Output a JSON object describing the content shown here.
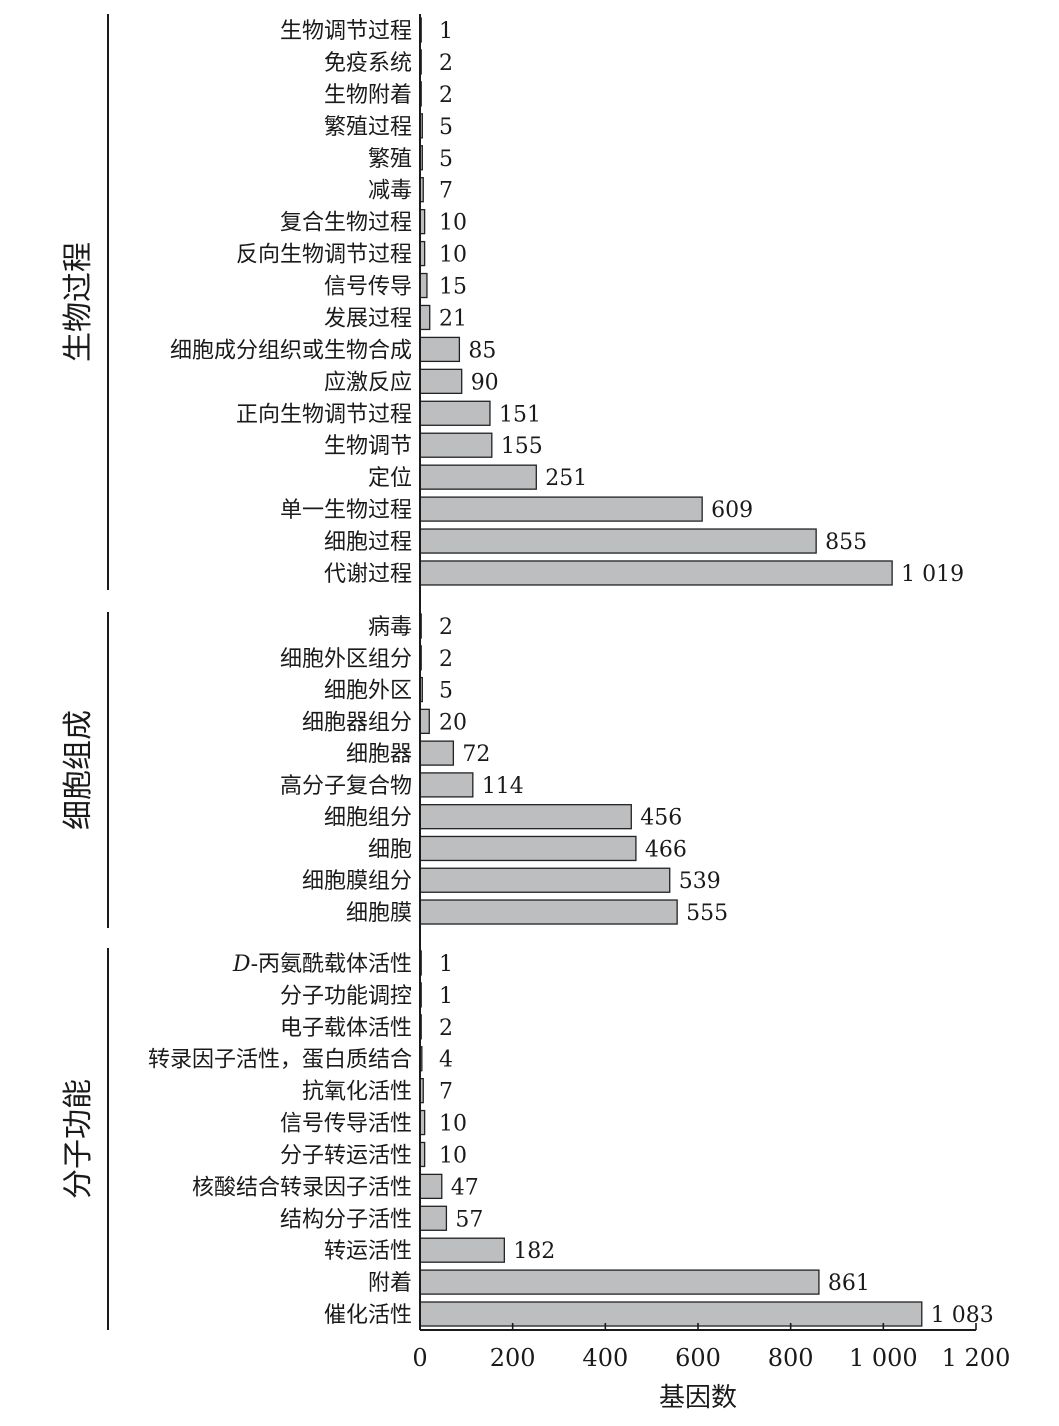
{
  "chart_data": {
    "type": "bar",
    "orientation": "horizontal",
    "xlabel": "基因数",
    "xlim": [
      0,
      1200
    ],
    "xticks": [
      0,
      200,
      400,
      600,
      800,
      1000,
      1200
    ],
    "xtick_labels": [
      "0",
      "200",
      "400",
      "600",
      "800",
      "1 000",
      "1 200"
    ],
    "grid": false,
    "colors": {
      "bar_fill": "#bcbec0",
      "bar_stroke": "#222222"
    },
    "groups": [
      {
        "name": "生物过程",
        "categories": [
          "生物调节过程",
          "免疫系统",
          "生物附着",
          "繁殖过程",
          "繁殖",
          "减毒",
          "复合生物过程",
          "反向生物调节过程",
          "信号传导",
          "发展过程",
          "细胞成分组织或生物合成",
          "应激反应",
          "正向生物调节过程",
          "生物调节",
          "定位",
          "单一生物过程",
          "细胞过程",
          "代谢过程"
        ],
        "values": [
          1,
          2,
          2,
          5,
          5,
          7,
          10,
          10,
          15,
          21,
          85,
          90,
          151,
          155,
          251,
          609,
          855,
          1019
        ],
        "value_labels": [
          "1",
          "2",
          "2",
          "5",
          "5",
          "7",
          "10",
          "10",
          "15",
          "21",
          "85",
          "90",
          "151",
          "155",
          "251",
          "609",
          "855",
          "1 019"
        ]
      },
      {
        "name": "细胞组成",
        "categories": [
          "病毒",
          "细胞外区组分",
          "细胞外区",
          "细胞器组分",
          "细胞器",
          "高分子复合物",
          "细胞组分",
          "细胞",
          "细胞膜组分",
          "细胞膜"
        ],
        "values": [
          2,
          2,
          5,
          20,
          72,
          114,
          456,
          466,
          539,
          555
        ],
        "value_labels": [
          "2",
          "2",
          "5",
          "20",
          "72",
          "114",
          "456",
          "466",
          "539",
          "555"
        ]
      },
      {
        "name": "分子功能",
        "categories": [
          "D-丙氨酰载体活性",
          "分子功能调控",
          "电子载体活性",
          "转录因子活性，蛋白质结合",
          "抗氧化活性",
          "信号传导活性",
          "分子转运活性",
          "核酸结合转录因子活性",
          "结构分子活性",
          "转运活性",
          "附着",
          "催化活性"
        ],
        "values": [
          1,
          1,
          2,
          4,
          7,
          10,
          10,
          47,
          57,
          182,
          861,
          1083
        ],
        "value_labels": [
          "1",
          "1",
          "2",
          "4",
          "7",
          "10",
          "10",
          "47",
          "57",
          "182",
          "861",
          "1 083"
        ]
      }
    ]
  }
}
